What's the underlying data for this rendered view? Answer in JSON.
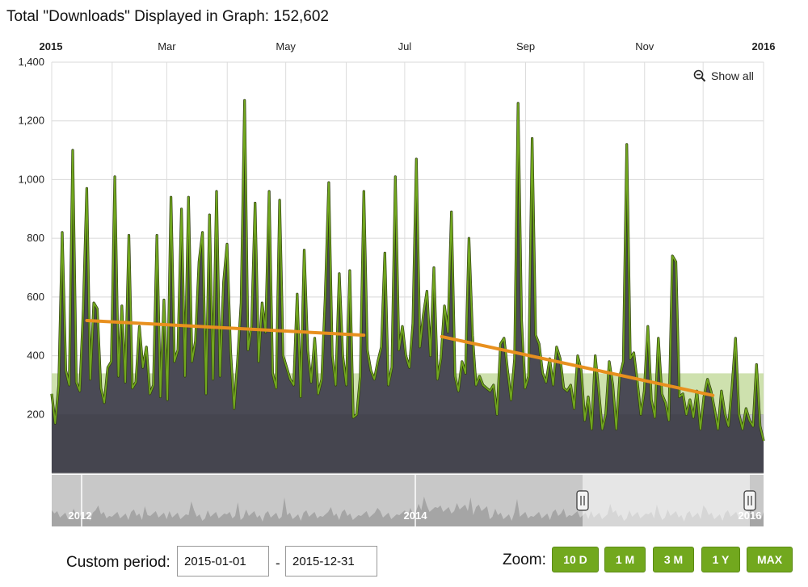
{
  "header": {
    "title": "Total \"Downloads\" Displayed in Graph: 152,602"
  },
  "toolbar": {
    "show_all": "Show all"
  },
  "period": {
    "label": "Custom period:",
    "start": "2015-01-01",
    "separator": "-",
    "end": "2015-12-31"
  },
  "zoom": {
    "label": "Zoom:",
    "buttons": [
      "10 D",
      "1 M",
      "3 M",
      "1 Y",
      "MAX"
    ]
  },
  "colors": {
    "area": "#4a4a55",
    "line": "#72a81e",
    "trend": "#e8901e",
    "band": "#c5dca0"
  },
  "chart_data": {
    "type": "area",
    "x_tick_labels": [
      "2015",
      "Mar",
      "May",
      "Jul",
      "Sep",
      "Nov",
      "2016"
    ],
    "x_tick_bold": [
      true,
      false,
      false,
      false,
      false,
      false,
      true
    ],
    "y_tick_labels": [
      "1,400",
      "1,200",
      "1,000",
      "800",
      "600",
      "400",
      "200"
    ],
    "ylim": [
      0,
      1400
    ],
    "grid": true,
    "navigator_labels": [
      "2012",
      "2014",
      "2016"
    ],
    "band": [
      200,
      340
    ],
    "series": [
      {
        "values": [
          270,
          170,
          300,
          820,
          350,
          300,
          1100,
          310,
          280,
          560,
          970,
          320,
          580,
          560,
          290,
          240,
          360,
          380,
          1010,
          330,
          570,
          310,
          810,
          290,
          310,
          500,
          360,
          430,
          270,
          300,
          810,
          260,
          590,
          250,
          940,
          380,
          420,
          900,
          330,
          940,
          380,
          450,
          720,
          820,
          270,
          880,
          320,
          960,
          330,
          650,
          780,
          420,
          220,
          380,
          580,
          1270,
          420,
          500,
          920,
          380,
          580,
          480,
          960,
          340,
          290,
          930,
          400,
          360,
          320,
          300,
          610,
          260,
          760,
          420,
          310,
          460,
          270,
          320,
          600,
          990,
          400,
          300,
          680,
          400,
          300,
          690,
          190,
          200,
          330,
          960,
          420,
          350,
          320,
          380,
          430,
          750,
          300,
          360,
          1010,
          420,
          500,
          400,
          360,
          510,
          1070,
          430,
          540,
          620,
          400,
          700,
          320,
          390,
          570,
          480,
          890,
          330,
          280,
          380,
          340,
          800,
          470,
          300,
          330,
          300,
          290,
          280,
          300,
          200,
          440,
          460,
          350,
          250,
          390,
          1260,
          520,
          290,
          330,
          1140,
          470,
          440,
          340,
          310,
          390,
          300,
          430,
          390,
          290,
          280,
          300,
          220,
          400,
          350,
          180,
          260,
          150,
          400,
          280,
          150,
          200,
          380,
          300,
          150,
          330,
          380,
          1120,
          390,
          410,
          310,
          200,
          280,
          500,
          250,
          190,
          460,
          270,
          240,
          180,
          740,
          720,
          260,
          270,
          200,
          250,
          190,
          280,
          150,
          260,
          320,
          280,
          220,
          150,
          280,
          200,
          160,
          290,
          460,
          200,
          150,
          220,
          180,
          160,
          370,
          160,
          110
        ]
      }
    ],
    "trend_lines": [
      {
        "x": [
          "2015-01-19",
          "2015-06-10"
        ],
        "y": [
          520,
          470
        ]
      },
      {
        "x": [
          "2015-07-20",
          "2015-12-06"
        ],
        "y": [
          465,
          265
        ]
      }
    ]
  }
}
